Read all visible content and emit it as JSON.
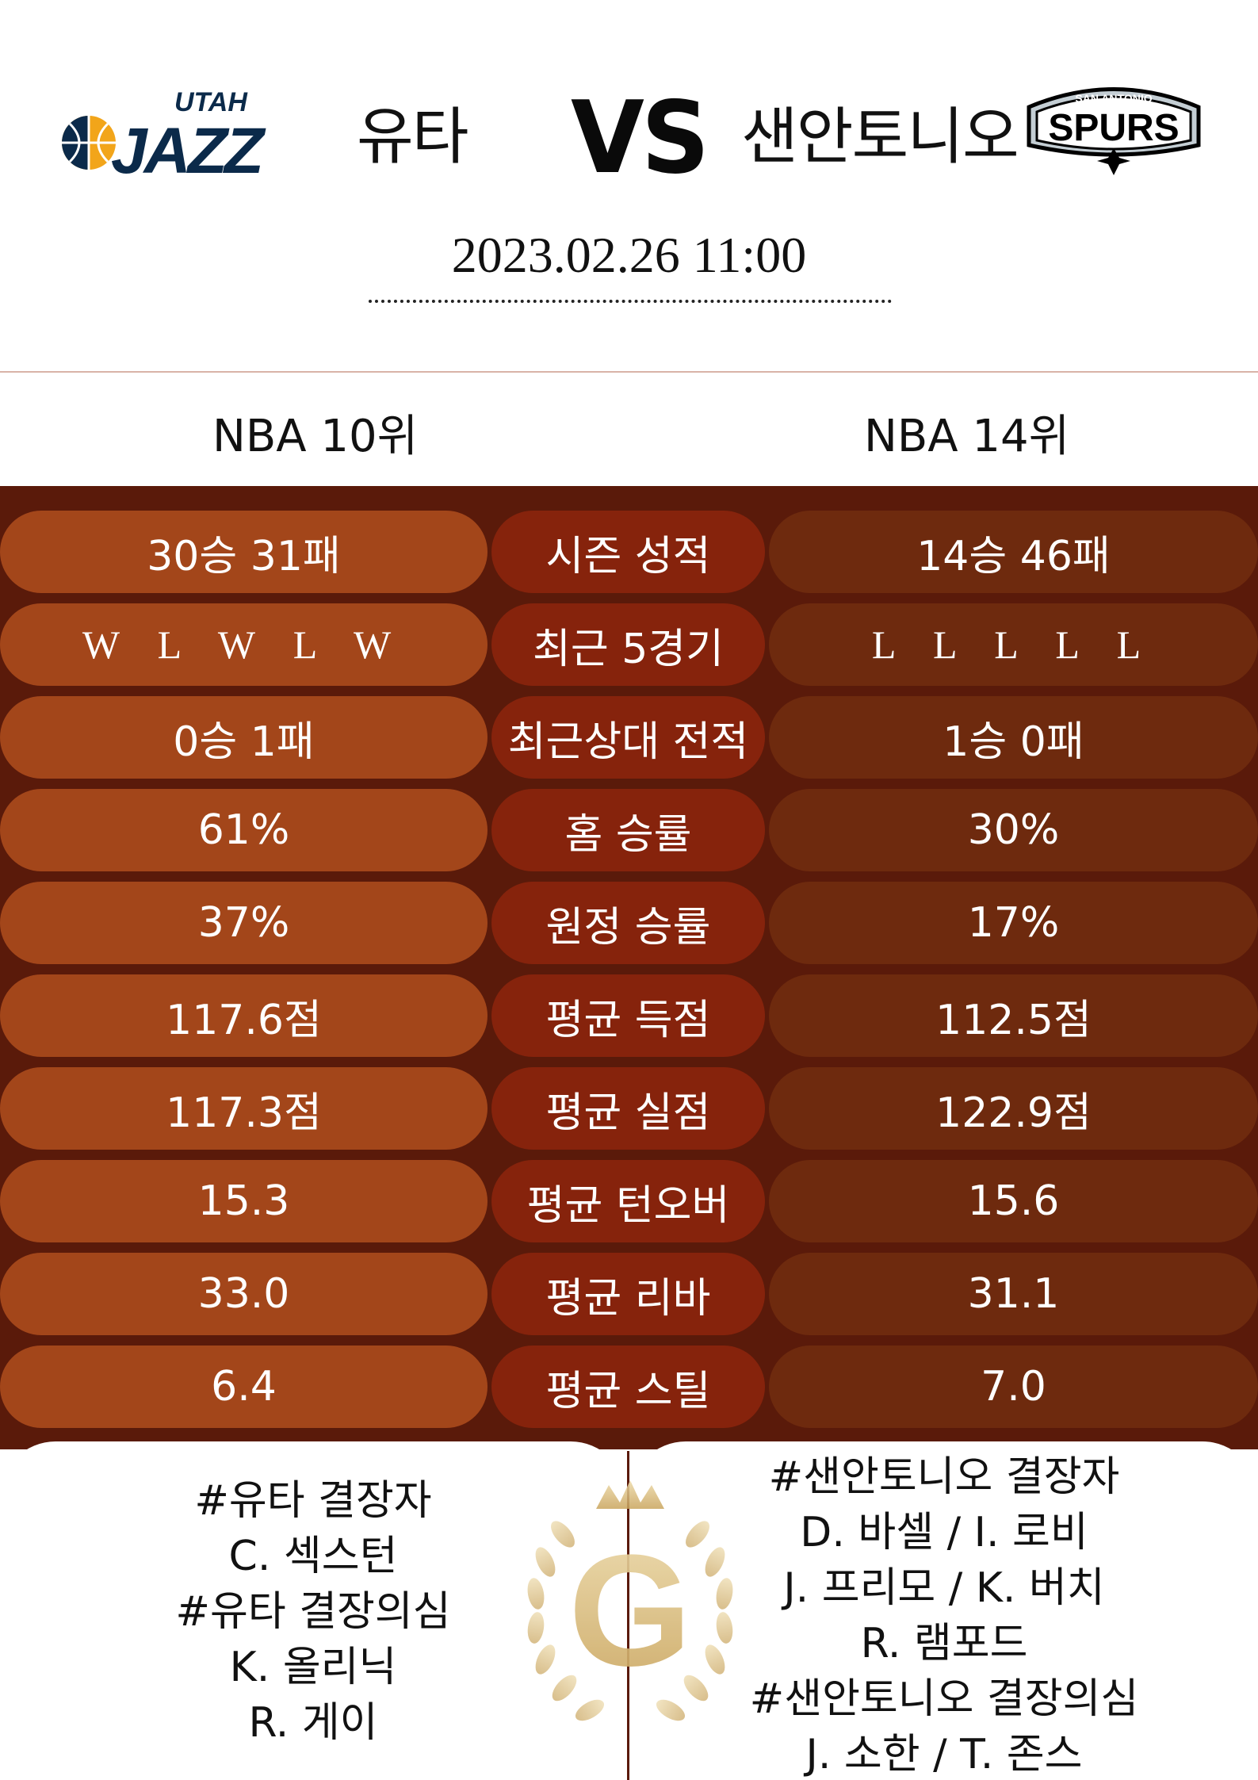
{
  "match": {
    "home_team": "유타",
    "away_team": "샌안토니오",
    "vs": "VS",
    "datetime": "2023.02.26  11:00"
  },
  "logos": {
    "home_wordmark_top": "UTAH",
    "home_wordmark_main": "JAZZ",
    "away_wordmark_top": "SAN ANTONIO",
    "away_wordmark_main": "SPURS"
  },
  "ranks": {
    "home": "NBA 10위",
    "away": "NBA 14위"
  },
  "stats": [
    {
      "label": "시즌 성적",
      "home": "30승 31패",
      "away": "14승 46패"
    },
    {
      "label": "최근 5경기",
      "home": "W L W L W",
      "away": "L L L L L"
    },
    {
      "label": "최근상대 전적",
      "home": "0승 1패",
      "away": "1승 0패"
    },
    {
      "label": "홈 승률",
      "home": "61%",
      "away": "30%"
    },
    {
      "label": "원정 승률",
      "home": "37%",
      "away": "17%"
    },
    {
      "label": "평균 득점",
      "home": "117.6점",
      "away": "112.5점"
    },
    {
      "label": "평균 실점",
      "home": "117.3점",
      "away": "122.9점"
    },
    {
      "label": "평균 턴오버",
      "home": "15.3",
      "away": "15.6"
    },
    {
      "label": "평균 리바",
      "home": "33.0",
      "away": "31.1"
    },
    {
      "label": "평균 스틸",
      "home": "6.4",
      "away": "7.0"
    }
  ],
  "injuries": {
    "home": [
      "#유타 결장자",
      "C. 섹스턴",
      "#유타 결장의심",
      "K. 올리닉",
      "R. 게이"
    ],
    "away": [
      "#샌안토니오 결장자",
      "D. 바셀 / I. 로비",
      "J. 프리모 / K. 버치",
      "R. 램포드",
      "#샌안토니오 결장의심",
      "J. 소한 / T. 존스"
    ]
  },
  "emblem": {
    "letter": "G"
  },
  "colors": {
    "background_dark": "#5a1a0a",
    "home_pill": "#a3461a",
    "label_pill": "#86230c",
    "away_pill": "#6e2a0e",
    "gold": "#d8bd86"
  }
}
